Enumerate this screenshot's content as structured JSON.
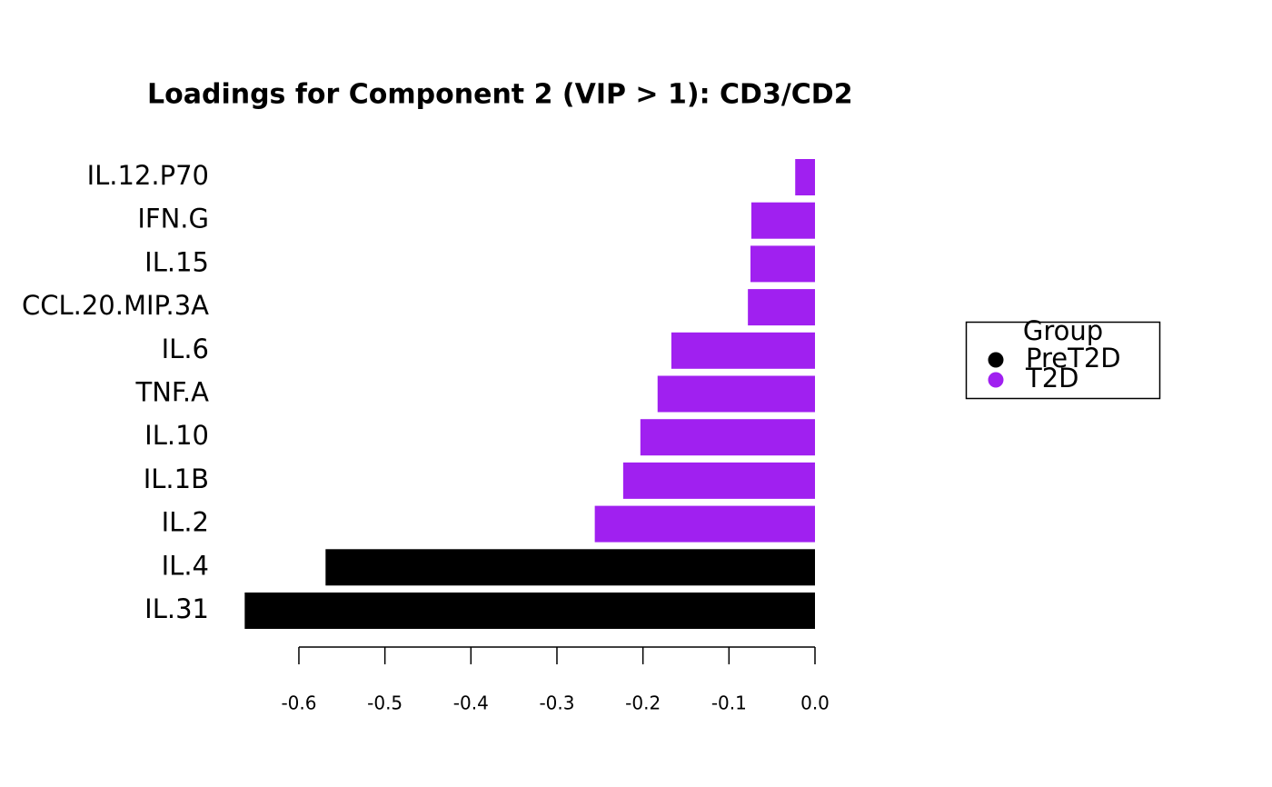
{
  "chart_data": {
    "type": "barh",
    "title": "Loadings for Component 2 (VIP > 1): CD3/CD2",
    "categories": [
      "IL.12.P70",
      "IFN.G",
      "IL.15",
      "CCL.20.MIP.3A",
      "IL.6",
      "TNF.A",
      "IL.10",
      "IL.1B",
      "IL.2",
      "IL.4",
      "IL.31"
    ],
    "series": [
      {
        "name": "PreT2D",
        "color": "#000000",
        "values": [
          null,
          null,
          null,
          null,
          null,
          null,
          null,
          null,
          null,
          -0.569,
          -0.663
        ]
      },
      {
        "name": "T2D",
        "color": "#A020F0",
        "values": [
          -0.023,
          -0.074,
          -0.075,
          -0.078,
          -0.167,
          -0.183,
          -0.203,
          -0.223,
          -0.256,
          null,
          null
        ]
      }
    ],
    "xlim": [
      -0.7,
      0
    ],
    "xticks": [
      -0.6,
      -0.5,
      -0.4,
      -0.3,
      -0.2,
      -0.1,
      {
        "value": 0,
        "label": "0.0"
      }
    ],
    "legend_title": "Group",
    "legend_position": "right"
  }
}
